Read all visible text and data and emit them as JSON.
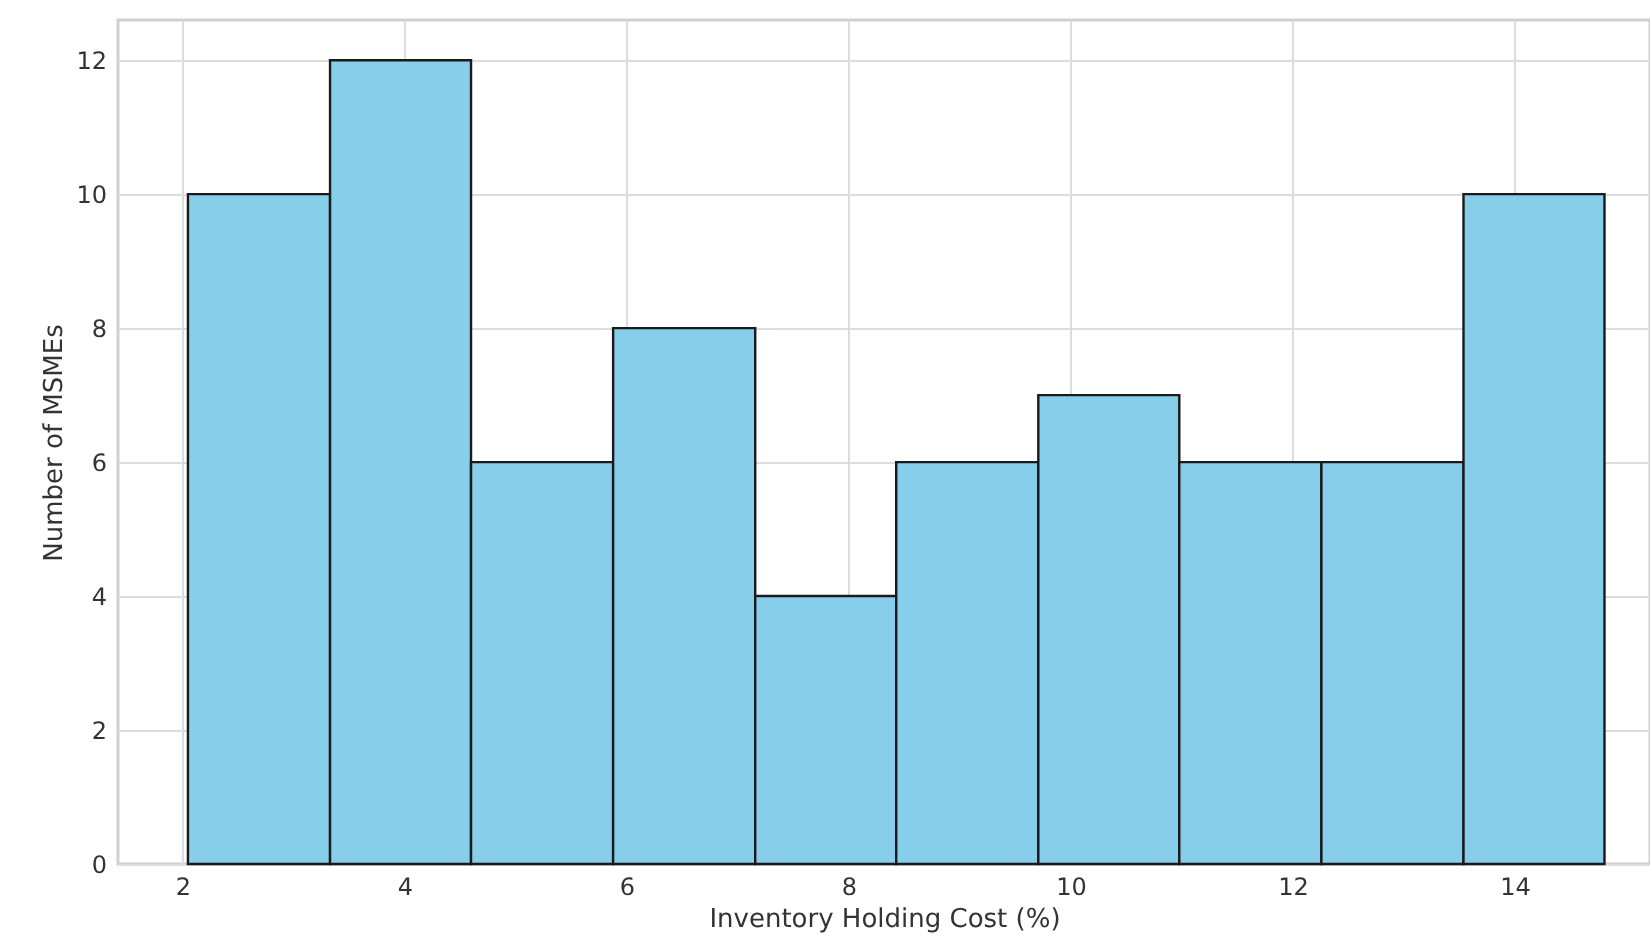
{
  "chart_data": {
    "type": "histogram",
    "xlabel": "Inventory Holding Cost (%)",
    "ylabel": "Number of MSMEs",
    "bins": [
      2.05,
      3.33,
      4.6,
      5.88,
      7.16,
      8.43,
      9.71,
      10.98,
      12.26,
      13.54,
      14.81
    ],
    "values": [
      10,
      12,
      6,
      8,
      4,
      6,
      7,
      6,
      6,
      10
    ],
    "color": "#87ceeb",
    "xlim": [
      1.42,
      15.22
    ],
    "xticks": [
      2,
      4,
      6,
      8,
      10,
      12,
      14
    ],
    "ylim": [
      0,
      12.6
    ],
    "yticks": [
      0,
      2,
      4,
      6,
      8,
      10,
      12
    ],
    "grid": true
  }
}
